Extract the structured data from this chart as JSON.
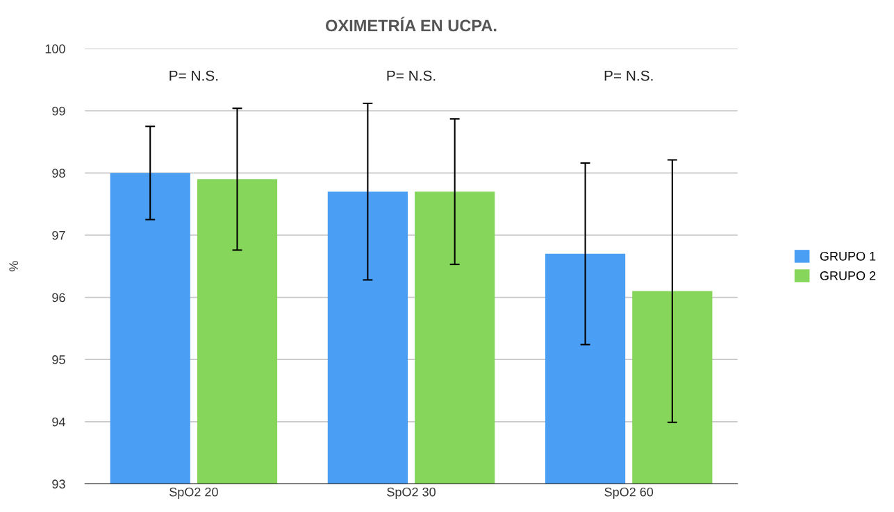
{
  "chart_data": {
    "type": "bar",
    "title": "OXIMETRÍA EN UCPA.",
    "ylabel": "%",
    "categories": [
      "SpO2 20",
      "SpO2 30",
      "SpO2 60"
    ],
    "series": [
      {
        "name": "GRUPO 1",
        "color": "#4a9ff5",
        "values": [
          98.0,
          97.7,
          96.7
        ],
        "errors": [
          0.75,
          1.42,
          1.46
        ]
      },
      {
        "name": "GRUPO 2",
        "color": "#85d65a",
        "values": [
          97.9,
          97.7,
          96.1
        ],
        "errors": [
          1.14,
          1.17,
          2.11
        ]
      }
    ],
    "ylim": [
      93,
      100
    ],
    "yticks": [
      93,
      94,
      95,
      96,
      97,
      98,
      99,
      100
    ],
    "grid": "y",
    "legend": "right",
    "annotations": [
      "P= N.S.",
      "P= N.S.",
      "P= N.S."
    ]
  }
}
